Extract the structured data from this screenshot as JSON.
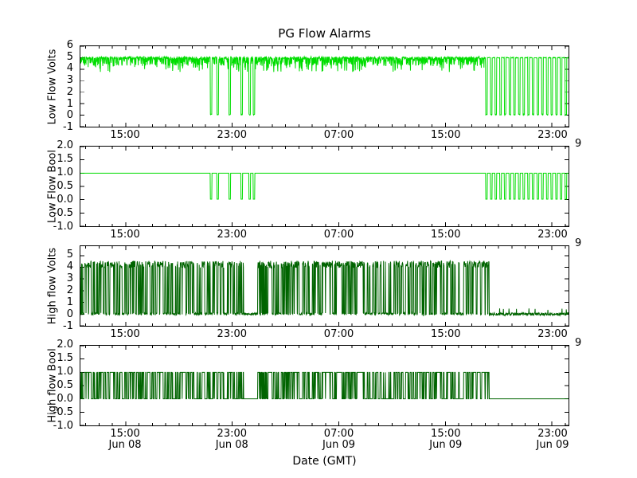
{
  "title": "PG Flow Alarms",
  "xlabel": "Date (GMT)",
  "chart_data": {
    "type": "line",
    "title": "PG Flow Alarms",
    "xlabel": "Date (GMT)",
    "x_axis_note": "hours since Jun 08 00:00 GMT",
    "xlim": [
      11.6,
      48.25
    ],
    "sample_step": 0.02,
    "x_minor_step": 1,
    "clipped_right_tick_fragment": "9",
    "x_major_ticks": [
      {
        "t": 15,
        "time": "15:00",
        "date": "Jun 08"
      },
      {
        "t": 23,
        "time": "23:00",
        "date": "Jun 08"
      },
      {
        "t": 31,
        "time": "07:00",
        "date": "Jun 09"
      },
      {
        "t": 39,
        "time": "15:00",
        "date": "Jun 09"
      },
      {
        "t": 47,
        "time": "23:00",
        "date": "Jun 09"
      }
    ],
    "subplots": [
      {
        "ylabel": "Low Flow Volts",
        "color": "#00dd00",
        "ylim": [
          -1,
          6
        ],
        "ytick_vals": [
          6,
          5,
          4,
          3,
          2,
          1,
          0,
          -1
        ],
        "ytick_labels": [
          "6",
          "5",
          "4",
          "3",
          "2",
          "1",
          "0",
          "-1"
        ],
        "show_date_row": false,
        "signal": {
          "kind": "baseline_dips",
          "baseline": 5.1,
          "clean_value": 5.0,
          "noisy_until": 42.1,
          "dip_value": 0.05,
          "dip_width": 0.12,
          "seed": 11,
          "dips": [
            21.4,
            21.9,
            22.8,
            23.7,
            24.3,
            24.62,
            42.1,
            42.45,
            42.8,
            43.15,
            43.5,
            43.85,
            44.2,
            44.55,
            44.9,
            45.25,
            45.6,
            45.95,
            46.3,
            46.65,
            47.0,
            47.35,
            47.7,
            48.05
          ]
        }
      },
      {
        "ylabel": "Low Flow Bool",
        "color": "#00dd00",
        "ylim": [
          -1,
          2
        ],
        "ytick_vals": [
          2,
          1.5,
          1,
          0.5,
          0,
          -0.5,
          -1
        ],
        "ytick_labels": [
          "2.0",
          "1.5",
          "1.0",
          "0.5",
          "0.0",
          "-0.5",
          "-1.0"
        ],
        "show_date_row": false,
        "signal": {
          "kind": "bool_dips",
          "high": 1.0,
          "low": 0.02,
          "dip_width": 0.12,
          "dips": [
            21.4,
            21.9,
            22.8,
            23.7,
            24.3,
            24.62,
            42.1,
            42.45,
            42.8,
            43.15,
            43.5,
            43.85,
            44.2,
            44.55,
            44.9,
            45.25,
            45.6,
            45.95,
            46.3,
            46.65,
            47.0,
            47.35,
            47.7,
            48.05
          ]
        }
      },
      {
        "ylabel": "High flow Volts",
        "color": "#006400",
        "ylim": [
          -1,
          5.8
        ],
        "ytick_vals": [
          5,
          4,
          3,
          2,
          1,
          0,
          -1
        ],
        "ytick_labels": [
          "5",
          "4",
          "3",
          "2",
          "1",
          "0",
          "-1"
        ],
        "show_date_row": false,
        "signal": {
          "kind": "telegraph",
          "active_until": 42.3,
          "toggle_prob": 0.25,
          "high_base": 3.95,
          "high_var": 0.6,
          "low_base": -0.08,
          "low_var": 0.2,
          "quiet": [
            [
              23.85,
              24.9
            ]
          ],
          "after_var": 0.12,
          "after_spike_prob": 0.03,
          "after_spike": 0.35,
          "seed_toggle": 1234567,
          "seed_amp": 424242
        }
      },
      {
        "ylabel": "High flow Bool",
        "color": "#006400",
        "ylim": [
          -1,
          2
        ],
        "ytick_vals": [
          2,
          1.5,
          1,
          0.5,
          0,
          -0.5,
          -1
        ],
        "ytick_labels": [
          "2.0",
          "1.5",
          "1.0",
          "0.5",
          "0.0",
          "-0.5",
          "-1.0"
        ],
        "show_date_row": true,
        "signal": {
          "kind": "telegraph_bool",
          "active_until": 42.3,
          "toggle_prob": 0.25,
          "quiet": [
            [
              23.85,
              24.9
            ]
          ],
          "seed_toggle": 1234567
        }
      }
    ]
  }
}
